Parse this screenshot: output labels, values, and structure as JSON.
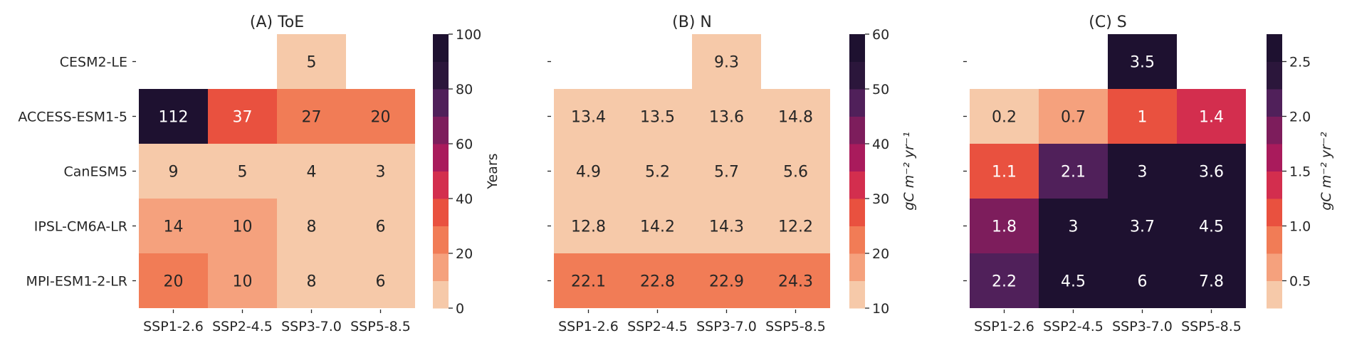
{
  "chart_data": [
    {
      "type": "heatmap",
      "title": "(A) ToE",
      "rows": [
        "CESM2-LE",
        "ACCESS-ESM1-5",
        "CanESM5",
        "IPSL-CM6A-LR",
        "MPI-ESM1-2-LR"
      ],
      "columns": [
        "SSP1-2.6",
        "SSP2-4.5",
        "SSP3-7.0",
        "SSP5-8.5"
      ],
      "values": [
        [
          null,
          null,
          5,
          null
        ],
        [
          112,
          37,
          27,
          20
        ],
        [
          9,
          5,
          4,
          3
        ],
        [
          14,
          10,
          8,
          6
        ],
        [
          20,
          10,
          8,
          6
        ]
      ],
      "cell_labels": [
        [
          null,
          null,
          "5",
          null
        ],
        [
          "112",
          "37",
          "27",
          "20"
        ],
        [
          "9",
          "5",
          "4",
          "3"
        ],
        [
          "14",
          "10",
          "8",
          "6"
        ],
        [
          "20",
          "10",
          "8",
          "6"
        ]
      ],
      "show_row_labels": true,
      "colorbar": {
        "label": "Years",
        "range": [
          0,
          100
        ],
        "ticks": [
          0,
          20,
          40,
          60,
          80,
          100
        ],
        "tick_labels": [
          "0",
          "20",
          "40",
          "60",
          "80",
          "100"
        ]
      }
    },
    {
      "type": "heatmap",
      "title": "(B) N",
      "rows": [
        "CESM2-LE",
        "ACCESS-ESM1-5",
        "CanESM5",
        "IPSL-CM6A-LR",
        "MPI-ESM1-2-LR"
      ],
      "columns": [
        "SSP1-2.6",
        "SSP2-4.5",
        "SSP3-7.0",
        "SSP5-8.5"
      ],
      "values": [
        [
          null,
          null,
          9.3,
          null
        ],
        [
          13.4,
          13.5,
          13.6,
          14.8
        ],
        [
          4.9,
          5.2,
          5.7,
          5.6
        ],
        [
          12.8,
          14.2,
          14.3,
          12.2
        ],
        [
          22.1,
          22.8,
          22.9,
          24.3
        ]
      ],
      "cell_labels": [
        [
          null,
          null,
          "9.3",
          null
        ],
        [
          "13.4",
          "13.5",
          "13.6",
          "14.8"
        ],
        [
          "4.9",
          "5.2",
          "5.7",
          "5.6"
        ],
        [
          "12.8",
          "14.2",
          "14.3",
          "12.2"
        ],
        [
          "22.1",
          "22.8",
          "22.9",
          "24.3"
        ]
      ],
      "show_row_labels": false,
      "colorbar": {
        "label": "gC  m⁻²  yr⁻¹",
        "range": [
          10,
          60
        ],
        "ticks": [
          10,
          20,
          30,
          40,
          50,
          60
        ],
        "tick_labels": [
          "10",
          "20",
          "30",
          "40",
          "50",
          "60"
        ]
      }
    },
    {
      "type": "heatmap",
      "title": "(C) S",
      "rows": [
        "CESM2-LE",
        "ACCESS-ESM1-5",
        "CanESM5",
        "IPSL-CM6A-LR",
        "MPI-ESM1-2-LR"
      ],
      "columns": [
        "SSP1-2.6",
        "SSP2-4.5",
        "SSP3-7.0",
        "SSP5-8.5"
      ],
      "values": [
        [
          null,
          null,
          3.5,
          null
        ],
        [
          0.2,
          0.7,
          1,
          1.4
        ],
        [
          1.1,
          2.1,
          3,
          3.6
        ],
        [
          1.8,
          3,
          3.7,
          4.5
        ],
        [
          2.2,
          4.5,
          6,
          7.8
        ]
      ],
      "cell_labels": [
        [
          null,
          null,
          "3.5",
          null
        ],
        [
          "0.2",
          "0.7",
          "1",
          "1.4"
        ],
        [
          "1.1",
          "2.1",
          "3",
          "3.6"
        ],
        [
          "1.8",
          "3",
          "3.7",
          "4.5"
        ],
        [
          "2.2",
          "4.5",
          "6",
          "7.8"
        ]
      ],
      "show_row_labels": false,
      "colorbar": {
        "label": "gC  m⁻²  yr⁻²",
        "range": [
          0.25,
          2.75
        ],
        "ticks": [
          0.5,
          1.0,
          1.5,
          2.0,
          2.5
        ],
        "tick_labels": [
          "0.5",
          "1.0",
          "1.5",
          "2.0",
          "2.5"
        ]
      }
    }
  ],
  "palette": [
    "#F6C9A9",
    "#F5A17D",
    "#F17C56",
    "#E9513F",
    "#D32E4E",
    "#A91B5C",
    "#7D1D5C",
    "#50205A",
    "#2B163B",
    "#1E1130"
  ],
  "text_colors": {
    "dark": "#262626",
    "light": "#ffffff"
  }
}
